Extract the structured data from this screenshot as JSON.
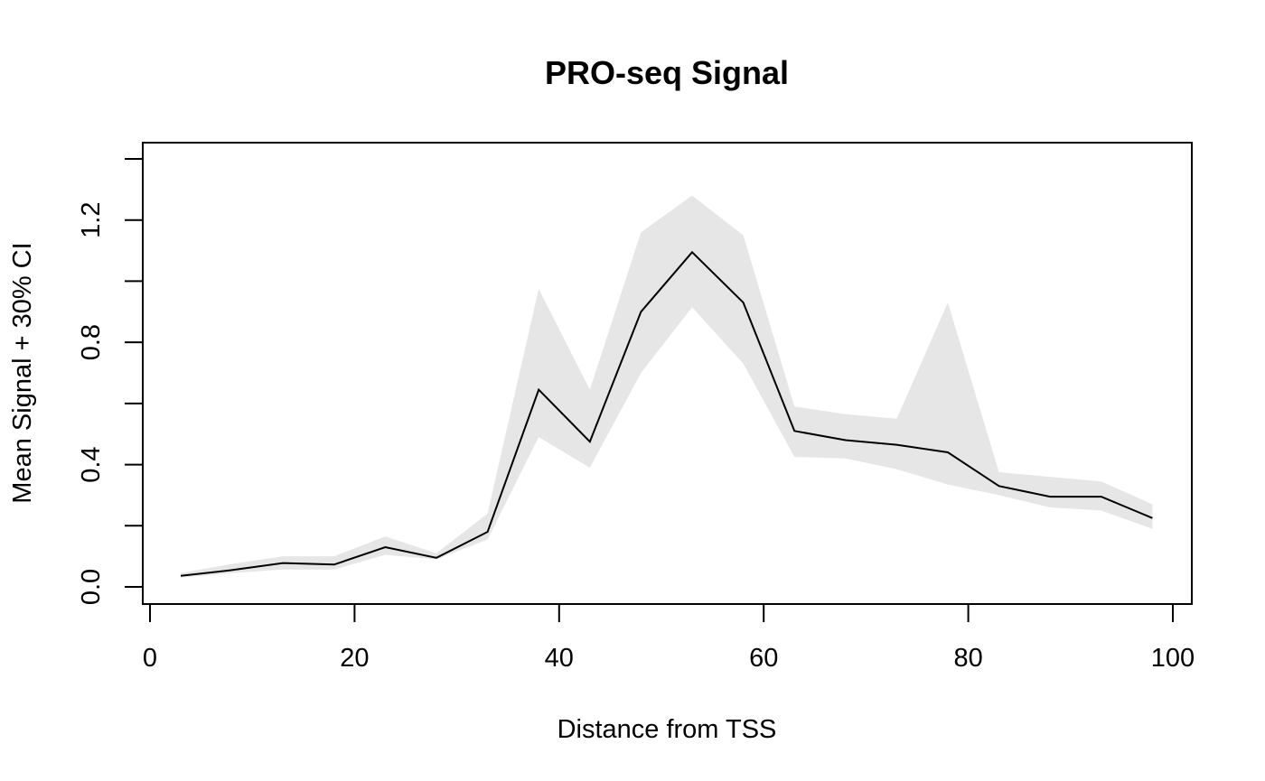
{
  "chart_data": {
    "type": "line",
    "title": "PRO-seq Signal",
    "xlabel": "Distance from TSS",
    "ylabel": "Mean Signal + 30% CI",
    "xlim": [
      0,
      100
    ],
    "ylim": [
      0,
      1.4
    ],
    "x_ticks": [
      0,
      20,
      40,
      60,
      80,
      100
    ],
    "y_ticks": [
      0.0,
      0.4,
      0.8,
      1.2
    ],
    "y_tick_labels": [
      "0.0",
      "0.4",
      "0.8",
      "1.2"
    ],
    "y_minor_ticks": [
      0.2,
      0.6,
      1.0,
      1.4
    ],
    "grid": false,
    "legend": "none",
    "series": [
      {
        "x": [
          3,
          8,
          13,
          18,
          23,
          28,
          33,
          38,
          43,
          48,
          53,
          58,
          63,
          68,
          73,
          78,
          83,
          88,
          93,
          98
        ],
        "mean": [
          0.036,
          0.055,
          0.078,
          0.073,
          0.13,
          0.095,
          0.18,
          0.645,
          0.475,
          0.9,
          1.095,
          0.93,
          0.51,
          0.48,
          0.465,
          0.44,
          0.33,
          0.295,
          0.295,
          0.225
        ],
        "lower": [
          0.03,
          0.045,
          0.057,
          0.057,
          0.105,
          0.09,
          0.155,
          0.49,
          0.39,
          0.7,
          0.915,
          0.73,
          0.425,
          0.42,
          0.385,
          0.335,
          0.3,
          0.26,
          0.25,
          0.19
        ],
        "upper": [
          0.045,
          0.075,
          0.1,
          0.1,
          0.165,
          0.11,
          0.24,
          0.975,
          0.645,
          1.16,
          1.28,
          1.15,
          0.59,
          0.565,
          0.55,
          0.93,
          0.375,
          0.36,
          0.345,
          0.27
        ]
      }
    ],
    "colors": {
      "line": "#000000",
      "ci_band": "#e6e6e6"
    }
  }
}
